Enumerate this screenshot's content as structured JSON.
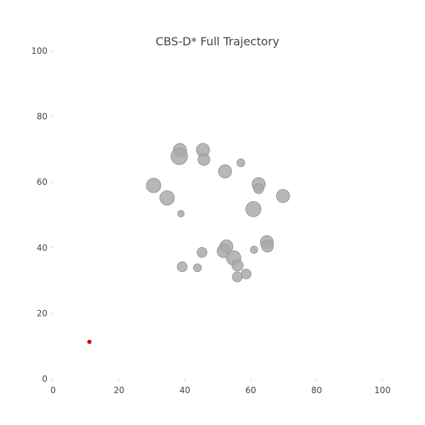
{
  "chart_data": {
    "type": "scatter",
    "title": "CBS-D* Full Trajectory",
    "xlabel": "",
    "ylabel": "",
    "xlim": [
      0,
      100
    ],
    "ylim": [
      0,
      100
    ],
    "x_ticks": [
      "0",
      "20",
      "40",
      "60",
      "80",
      "100"
    ],
    "y_ticks": [
      "0",
      "20",
      "40",
      "60",
      "80",
      "100"
    ],
    "grid": false,
    "legend": "none",
    "obstacles": {
      "color": "#aaaaaa",
      "points": [
        {
          "x": 38.5,
          "y": 69.8,
          "r": 2.0
        },
        {
          "x": 45.5,
          "y": 69.8,
          "r": 2.0
        },
        {
          "x": 38.3,
          "y": 67.9,
          "r": 2.5
        },
        {
          "x": 45.8,
          "y": 66.9,
          "r": 1.8
        },
        {
          "x": 57.0,
          "y": 65.9,
          "r": 1.2
        },
        {
          "x": 52.2,
          "y": 63.3,
          "r": 2.0
        },
        {
          "x": 30.5,
          "y": 59.0,
          "r": 2.2
        },
        {
          "x": 62.4,
          "y": 59.4,
          "r": 2.0
        },
        {
          "x": 62.4,
          "y": 58.0,
          "r": 1.5
        },
        {
          "x": 34.6,
          "y": 55.2,
          "r": 2.2
        },
        {
          "x": 69.8,
          "y": 55.8,
          "r": 2.0
        },
        {
          "x": 60.8,
          "y": 51.8,
          "r": 2.3
        },
        {
          "x": 38.8,
          "y": 50.4,
          "r": 1.0
        },
        {
          "x": 64.9,
          "y": 41.7,
          "r": 2.0
        },
        {
          "x": 65.1,
          "y": 40.5,
          "r": 1.8
        },
        {
          "x": 52.6,
          "y": 40.4,
          "r": 2.0
        },
        {
          "x": 51.8,
          "y": 39.0,
          "r": 2.0
        },
        {
          "x": 61.0,
          "y": 39.4,
          "r": 1.1
        },
        {
          "x": 45.2,
          "y": 38.6,
          "r": 1.5
        },
        {
          "x": 54.8,
          "y": 36.9,
          "r": 2.2
        },
        {
          "x": 56.0,
          "y": 34.6,
          "r": 1.7
        },
        {
          "x": 39.2,
          "y": 34.2,
          "r": 1.5
        },
        {
          "x": 43.8,
          "y": 33.9,
          "r": 1.2
        },
        {
          "x": 58.6,
          "y": 32.0,
          "r": 1.5
        },
        {
          "x": 55.9,
          "y": 31.1,
          "r": 1.5
        }
      ]
    },
    "agents": {
      "color": "#dd0000",
      "points": [
        {
          "x": 11.0,
          "y": 11.3
        }
      ]
    }
  }
}
